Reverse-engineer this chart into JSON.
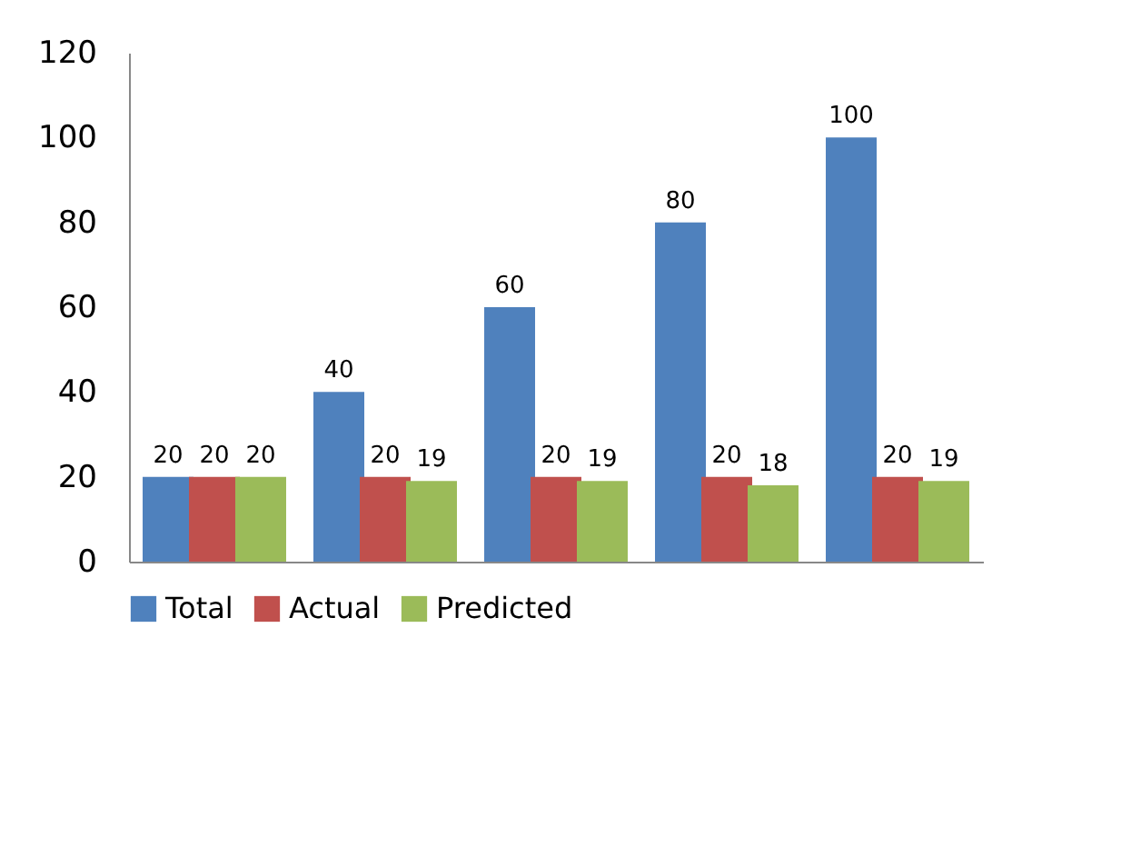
{
  "chart_data": {
    "type": "bar",
    "categories": [
      null,
      null,
      null,
      null,
      null
    ],
    "series": [
      {
        "name": "Total",
        "color": "#4f81bd",
        "values": [
          20,
          40,
          60,
          80,
          100
        ]
      },
      {
        "name": "Actual",
        "color": "#c0504d",
        "values": [
          20,
          20,
          20,
          20,
          20
        ]
      },
      {
        "name": "Predicted",
        "color": "#9bbb59",
        "values": [
          20,
          19,
          19,
          18,
          19
        ]
      }
    ],
    "ylim": [
      0,
      120
    ],
    "yticks": [
      0,
      20,
      40,
      60,
      80,
      100,
      120
    ],
    "data_labels": true,
    "legend": "bottom",
    "grid": false,
    "tick_labels": "y"
  }
}
